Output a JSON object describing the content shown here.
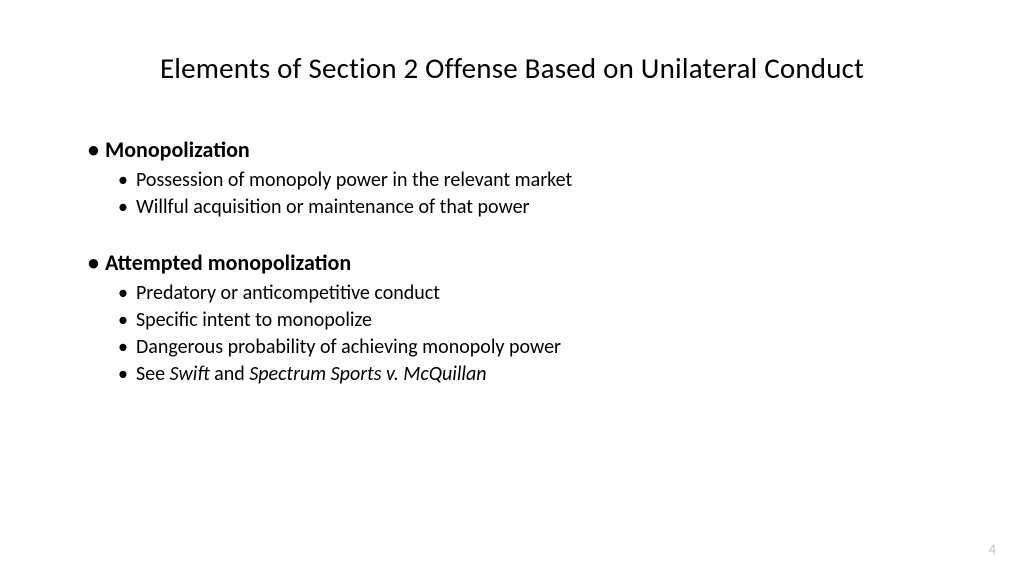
{
  "title": "Elements of Section 2 Offense Based on Unilateral Conduct",
  "sections": [
    {
      "header": "Monopolization",
      "items": [
        {
          "text": "Possession of monopoly power in the relevant market"
        },
        {
          "text": "Willful acquisition or maintenance of that power"
        }
      ]
    },
    {
      "header": "Attempted monopolization",
      "items": [
        {
          "text": "Predatory or anticompetitive conduct"
        },
        {
          "text": "Specific intent to monopolize"
        },
        {
          "text": "Dangerous probability of achieving monopoly power"
        },
        {
          "prefix": "See ",
          "italic1": "Swift",
          "mid": " and ",
          "italic2": "Spectrum Sports v. McQuillan"
        }
      ]
    }
  ],
  "pageNumber": "4",
  "bullet": "•",
  "colors": {
    "background": "#ffffff",
    "text": "#000000",
    "pageNumber": "#bfbfbf"
  },
  "fonts": {
    "title_size": 29,
    "header_size": 22,
    "item_size": 20,
    "pagenum_size": 14
  }
}
